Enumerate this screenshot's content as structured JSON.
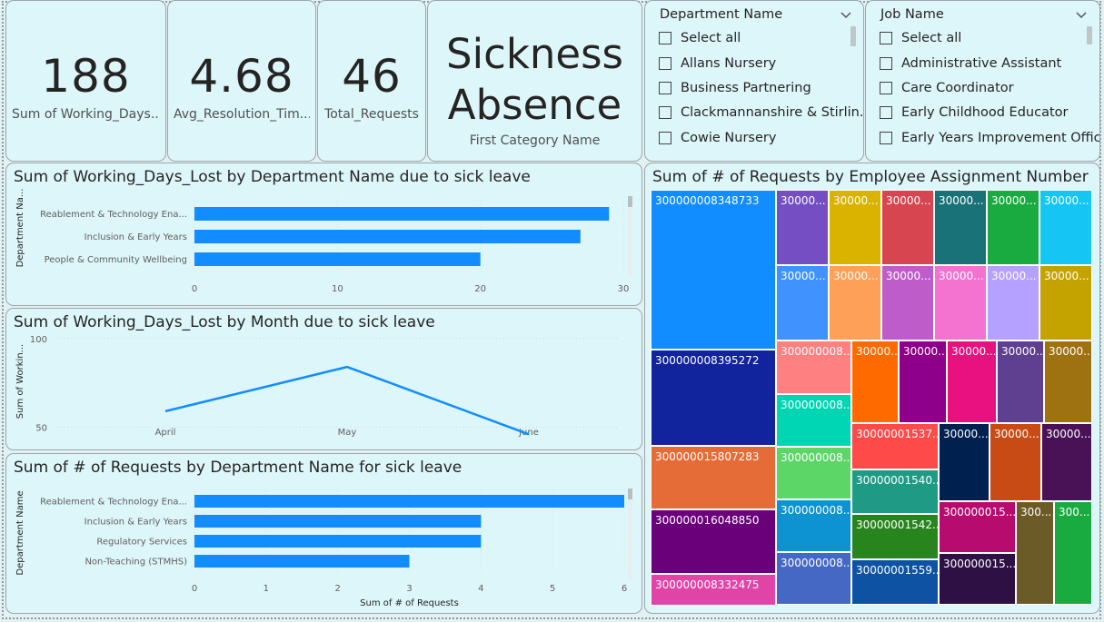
{
  "kpis": [
    {
      "value": "188",
      "label": "Sum of Working_Days..."
    },
    {
      "value": "4.68",
      "label": "Avg_Resolution_Tim..."
    },
    {
      "value": "46",
      "label": "Total_Requests"
    }
  ],
  "title_card": {
    "line1": "Sickness",
    "line2": "Absence",
    "caption": "First Category Name"
  },
  "dept_slicer": {
    "title": "Department Name",
    "items": [
      "Select all",
      "Allans Nursery",
      "Business Partnering",
      "Clackmannanshire & Stirlin...",
      "Cowie Nursery"
    ]
  },
  "job_slicer": {
    "title": "Job Name",
    "items": [
      "Select all",
      "Administrative Assistant",
      "Care Coordinator",
      "Early Childhood Educator",
      "Early Years Improvement Officer"
    ]
  },
  "chart_data": [
    {
      "type": "bar",
      "orientation": "horizontal",
      "title": "Sum of Working_Days_Lost by Department Name due to sick leave",
      "ylabel": "Department Na...",
      "xlabel": "",
      "categories": [
        "Reablement & Technology Ena...",
        "Inclusion & Early Years",
        "People & Community Wellbeing"
      ],
      "values": [
        29,
        27,
        20
      ],
      "xlim": [
        0,
        30
      ],
      "xticks": [
        0,
        10,
        20,
        30
      ],
      "color": "#118dff"
    },
    {
      "type": "line",
      "title": "Sum of Working_Days_Lost by Month due to sick leave",
      "ylabel": "Sum of Workin...",
      "xlabel": "",
      "x": [
        "April",
        "May",
        "June"
      ],
      "values": [
        59,
        84,
        46
      ],
      "ylim": [
        40,
        105
      ],
      "yticks": [
        50,
        100
      ],
      "color": "#118dff"
    },
    {
      "type": "bar",
      "orientation": "horizontal",
      "title": "Sum of # of Requests by Department Name for sick leave",
      "ylabel": "Department Name",
      "xlabel": "Sum of # of Requests",
      "categories": [
        "Reablement & Technology Ena...",
        "Inclusion & Early Years",
        "Regulatory Services",
        "Non-Teaching (STMHS)"
      ],
      "values": [
        6,
        4,
        4,
        3
      ],
      "xlim": [
        0,
        6
      ],
      "xticks": [
        0,
        1,
        2,
        3,
        4,
        5,
        6
      ],
      "color": "#118dff"
    },
    {
      "type": "treemap",
      "title": "Sum of # of Requests by Employee Assignment Number",
      "cells": [
        {
          "label": "300000008348733",
          "color": "#118dff"
        },
        {
          "label": "30000...",
          "color": "#744ec2"
        },
        {
          "label": "30000...",
          "color": "#d9b300"
        },
        {
          "label": "30000...",
          "color": "#d64550"
        },
        {
          "label": "30000...",
          "color": "#197278"
        },
        {
          "label": "30000...",
          "color": "#1aab40"
        },
        {
          "label": "30000...",
          "color": "#15c6f4"
        },
        {
          "label": "30000...",
          "color": "#4092ff"
        },
        {
          "label": "30000...",
          "color": "#ffa058"
        },
        {
          "label": "30000...",
          "color": "#be5dc9"
        },
        {
          "label": "30000...",
          "color": "#f472d0"
        },
        {
          "label": "30000...",
          "color": "#b5a1ff"
        },
        {
          "label": "30000...",
          "color": "#c4a200"
        },
        {
          "label": "300000008395272",
          "color": "#12239e"
        },
        {
          "label": "300000008...",
          "color": "#ff8080"
        },
        {
          "label": "30000...",
          "color": "#ff6a00"
        },
        {
          "label": "30000...",
          "color": "#8e0089"
        },
        {
          "label": "30000...",
          "color": "#e8117f"
        },
        {
          "label": "30000...",
          "color": "#5f3f8f"
        },
        {
          "label": "30000...",
          "color": "#9e7211"
        },
        {
          "label": "300000008...",
          "color": "#00d6b4"
        },
        {
          "label": "300000015807283",
          "color": "#e66c37"
        },
        {
          "label": "300000008...",
          "color": "#5bd667"
        },
        {
          "label": "30000001537...",
          "color": "#fe4a49"
        },
        {
          "label": "30000...",
          "color": "#002050"
        },
        {
          "label": "30000...",
          "color": "#c84b16"
        },
        {
          "label": "30000...",
          "color": "#4a1256"
        },
        {
          "label": "30000001540...",
          "color": "#1f9a85"
        },
        {
          "label": "300000016048850",
          "color": "#6b007b"
        },
        {
          "label": "300000008...",
          "color": "#0d93d2"
        },
        {
          "label": "30000001542...",
          "color": "#28851d"
        },
        {
          "label": "300000015...",
          "color": "#b80b6f"
        },
        {
          "label": "300...",
          "color": "#6b5b27"
        },
        {
          "label": "300...",
          "color": "#1aab40"
        },
        {
          "label": "300000008...",
          "color": "#4668c5"
        },
        {
          "label": "30000001559...",
          "color": "#0d52a3"
        },
        {
          "label": "300000015...",
          "color": "#2f1045"
        },
        {
          "label": "300000008332475",
          "color": "#e044a7"
        }
      ]
    }
  ]
}
